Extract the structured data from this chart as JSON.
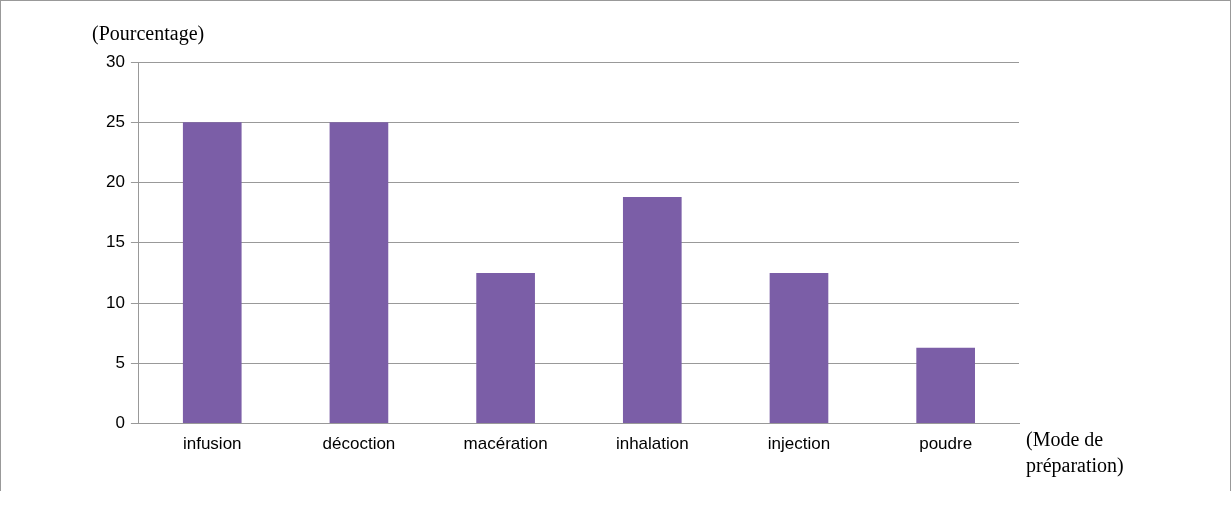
{
  "chart_data": {
    "type": "bar",
    "xlabel": "(Mode de préparation)",
    "ylabel": "(Pourcentage)",
    "categories": [
      "infusion",
      "décoction",
      "macération",
      "inhalation",
      "injection",
      "poudre"
    ],
    "values": [
      25,
      25,
      12.5,
      18.8,
      12.5,
      6.3
    ],
    "color": "#7b5ea7",
    "ylim": [
      0,
      30
    ],
    "yticks": [
      0,
      5,
      10,
      15,
      20,
      25,
      30
    ],
    "grid": "y",
    "legend": false
  }
}
